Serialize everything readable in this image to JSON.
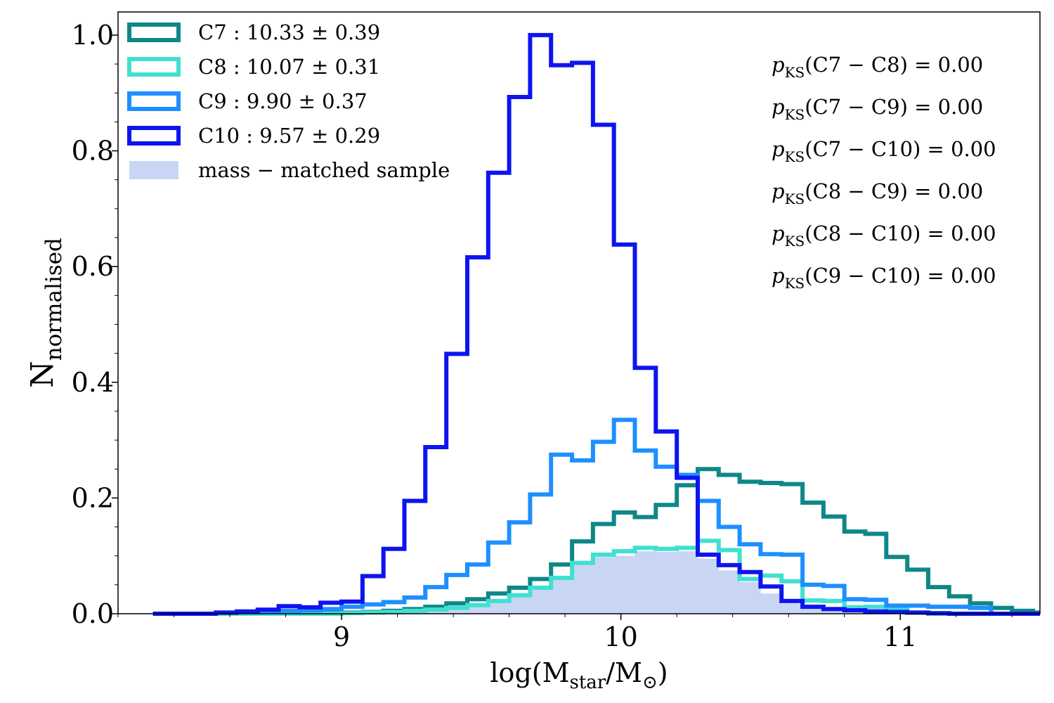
{
  "chart_data": {
    "type": "histogram-step",
    "xlabel_main": "log(M",
    "xlabel_sub1": "star",
    "xlabel_mid": "/M",
    "xlabel_sub2": "⊙",
    "xlabel_end": ")",
    "ylabel_main": "N",
    "ylabel_sub": "normalised",
    "xlim": [
      8.2,
      11.5
    ],
    "ylim": [
      0.0,
      1.04
    ],
    "x_ticks": [
      9,
      10,
      11
    ],
    "x_tick_labels": [
      "9",
      "10",
      "11"
    ],
    "y_ticks": [
      0.0,
      0.2,
      0.4,
      0.6,
      0.8,
      1.0
    ],
    "y_tick_labels": [
      "0.0",
      "0.2",
      "0.4",
      "0.6",
      "0.8",
      "1.0"
    ],
    "bin_edges": [
      8.325,
      8.4,
      8.475,
      8.55,
      8.625,
      8.7,
      8.775,
      8.85,
      8.925,
      9.0,
      9.075,
      9.15,
      9.225,
      9.3,
      9.375,
      9.45,
      9.525,
      9.6,
      9.675,
      9.75,
      9.825,
      9.9,
      9.975,
      10.05,
      10.125,
      10.2,
      10.275,
      10.35,
      10.425,
      10.5,
      10.575,
      10.65,
      10.725,
      10.8,
      10.875,
      10.95,
      11.025,
      11.1,
      11.175,
      11.25,
      11.325,
      11.4,
      11.475,
      11.55
    ],
    "series": [
      {
        "name": "C7",
        "legend_label": "C7 : 10.33 ± 0.39",
        "color": "#0f8787",
        "values": [
          0,
          0,
          0,
          0,
          0,
          0,
          0,
          0,
          0.001,
          0.002,
          0.003,
          0.005,
          0.008,
          0.012,
          0.018,
          0.025,
          0.035,
          0.045,
          0.06,
          0.085,
          0.125,
          0.155,
          0.175,
          0.167,
          0.188,
          0.222,
          0.25,
          0.24,
          0.228,
          0.226,
          0.224,
          0.192,
          0.168,
          0.142,
          0.138,
          0.098,
          0.076,
          0.046,
          0.03,
          0.018,
          0.01,
          0.005,
          0.002
        ]
      },
      {
        "name": "C8",
        "legend_label": "C8 : 10.07 ± 0.31",
        "color": "#40e0d0",
        "values": [
          0,
          0,
          0,
          0,
          0,
          0,
          0,
          0,
          0,
          0.001,
          0.002,
          0.003,
          0.005,
          0.007,
          0.01,
          0.015,
          0.022,
          0.032,
          0.045,
          0.062,
          0.088,
          0.102,
          0.108,
          0.114,
          0.112,
          0.114,
          0.126,
          0.11,
          0.06,
          0.066,
          0.056,
          0.023,
          0.022,
          0.011,
          0.012,
          0.01,
          0.002,
          0,
          0,
          0,
          0,
          0,
          0
        ]
      },
      {
        "name": "C9",
        "legend_label": "C9 : 9.90 ± 0.37",
        "color": "#1e8fff",
        "values": [
          0,
          0,
          0,
          0.002,
          0.003,
          0.004,
          0.005,
          0.006,
          0.008,
          0.012,
          0.016,
          0.02,
          0.028,
          0.046,
          0.067,
          0.085,
          0.123,
          0.158,
          0.206,
          0.275,
          0.265,
          0.297,
          0.335,
          0.282,
          0.254,
          0.24,
          0.195,
          0.15,
          0.12,
          0.103,
          0.102,
          0.05,
          0.048,
          0.025,
          0.024,
          0.014,
          0.014,
          0.012,
          0.012,
          0.01,
          0,
          0,
          0
        ]
      },
      {
        "name": "C10",
        "legend_label": "C10 : 9.57 ± 0.29",
        "color": "#0d14f0",
        "values": [
          0,
          0,
          0,
          0.002,
          0.004,
          0.007,
          0.013,
          0.011,
          0.019,
          0.021,
          0.065,
          0.112,
          0.195,
          0.288,
          0.449,
          0.616,
          0.762,
          0.893,
          1.0,
          0.948,
          0.952,
          0.845,
          0.638,
          0.425,
          0.315,
          0.235,
          0.102,
          0.084,
          0.072,
          0.047,
          0.022,
          0.012,
          0.008,
          0.006,
          0.004,
          0.003,
          0.002,
          0.001,
          0,
          0,
          0,
          0,
          0
        ]
      },
      {
        "name": "mass-matched",
        "legend_label": "mass − matched sample",
        "color": "#c8d6f4",
        "filled": true,
        "values": [
          0,
          0,
          0,
          0,
          0,
          0,
          0,
          0,
          0,
          0.001,
          0.002,
          0.003,
          0.005,
          0.007,
          0.01,
          0.015,
          0.022,
          0.032,
          0.045,
          0.062,
          0.085,
          0.098,
          0.1,
          0.108,
          0.107,
          0.108,
          0.095,
          0.075,
          0.055,
          0.035,
          0.018,
          0.01,
          0.004,
          0.002,
          0,
          0,
          0,
          0,
          0,
          0,
          0,
          0,
          0
        ]
      }
    ],
    "ks_tests": [
      {
        "pair": "C7 − C8",
        "value": "0.00"
      },
      {
        "pair": "C7 − C9",
        "value": "0.00"
      },
      {
        "pair": "C7 − C10",
        "value": "0.00"
      },
      {
        "pair": "C8 − C9",
        "value": "0.00"
      },
      {
        "pair": "C8 − C10",
        "value": "0.00"
      },
      {
        "pair": "C9 − C10",
        "value": "0.00"
      }
    ],
    "ks_prefix": "p",
    "ks_sub": "KS",
    "legend_position": "top-left",
    "grid": false
  }
}
